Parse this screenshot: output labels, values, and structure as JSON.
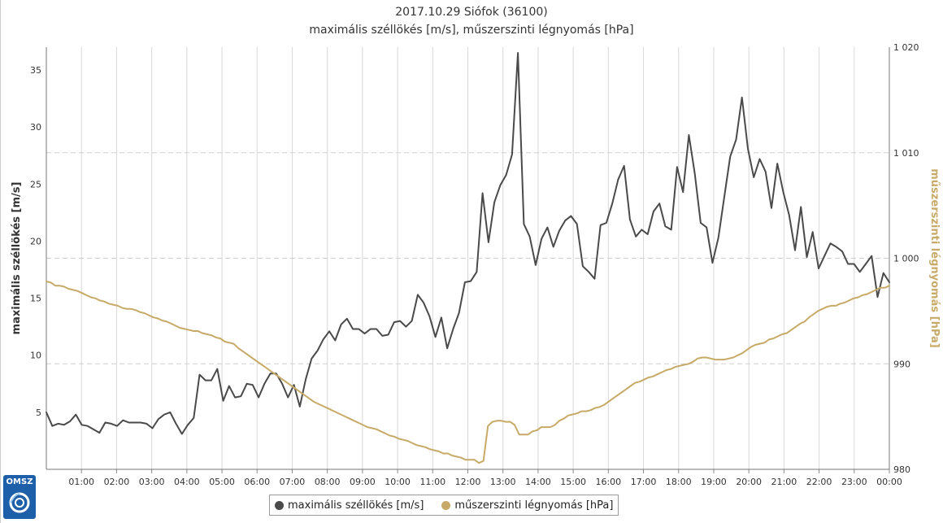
{
  "chart_data": {
    "type": "line",
    "title": "2017.10.29 Siófok (36100)",
    "subtitle": "maximális széllökés [m/s], műszerszinti légnyomás [hPa]",
    "xlabels": [
      "01:00",
      "02:00",
      "03:00",
      "04:00",
      "05:00",
      "06:00",
      "07:00",
      "08:00",
      "09:00",
      "10:00",
      "11:00",
      "12:00",
      "13:00",
      "14:00",
      "15:00",
      "16:00",
      "17:00",
      "18:00",
      "19:00",
      "20:00",
      "21:00",
      "22:00",
      "23:00",
      "00:00"
    ],
    "y_left": {
      "label": "maximális széllökés [m/s]",
      "ticks": [
        "5",
        "10",
        "15",
        "20",
        "25",
        "30",
        "35"
      ],
      "range": [
        0,
        37
      ]
    },
    "y_right": {
      "label": "műszerszinti légnyomás [hPa]",
      "ticks": [
        "980",
        "990",
        "1 000",
        "1 010",
        "1 020"
      ],
      "range": [
        980,
        1020
      ]
    },
    "grid": true,
    "legend_position": "bottom",
    "series": [
      {
        "name": "maximális széllökés [m/s]",
        "axis": "left",
        "color": "#4a4a4a",
        "values": [
          5.0,
          3.8,
          4.0,
          3.9,
          4.2,
          4.8,
          3.9,
          3.8,
          3.5,
          3.2,
          4.1,
          4.0,
          3.8,
          4.3,
          4.1,
          4.1,
          4.1,
          4.0,
          3.6,
          4.4,
          4.8,
          5.0,
          4.0,
          3.1,
          3.9,
          4.5,
          8.3,
          7.8,
          7.8,
          8.8,
          6.0,
          7.3,
          6.3,
          6.4,
          7.5,
          7.4,
          6.3,
          7.5,
          8.4,
          8.4,
          7.5,
          6.3,
          7.4,
          5.5,
          7.9,
          9.7,
          10.4,
          11.4,
          12.1,
          11.3,
          12.7,
          13.2,
          12.3,
          12.3,
          11.9,
          12.3,
          12.3,
          11.7,
          11.8,
          12.9,
          13.0,
          12.5,
          13.0,
          15.3,
          14.6,
          13.4,
          11.6,
          13.3,
          10.6,
          12.3,
          13.7,
          16.4,
          16.5,
          17.3,
          24.2,
          19.9,
          23.4,
          24.9,
          25.8,
          27.6,
          36.5,
          21.5,
          20.4,
          17.9,
          20.2,
          21.2,
          19.5,
          20.9,
          21.8,
          22.2,
          21.5,
          17.8,
          17.3,
          16.7,
          21.4,
          21.6,
          23.3,
          25.4,
          26.6,
          21.9,
          20.4,
          21.0,
          20.6,
          22.6,
          23.3,
          21.3,
          21.0,
          26.5,
          24.3,
          29.3,
          25.9,
          21.6,
          21.2,
          18.1,
          20.3,
          23.9,
          27.4,
          28.9,
          32.6,
          28.1,
          25.6,
          27.2,
          26.1,
          22.9,
          26.8,
          24.3,
          22.3,
          19.2,
          23.0,
          18.6,
          20.8,
          17.6,
          18.7,
          19.8,
          19.5,
          19.1,
          18.0,
          18.0,
          17.3,
          18.0,
          18.7,
          15.1,
          17.2,
          16.4
        ],
        "x_start_hour": 0,
        "x_step_hours": 0.16667
      },
      {
        "name": "műszerszinti légnyomás [hPa]",
        "axis": "right",
        "color": "#c8aa68",
        "values": [
          997.8,
          997.7,
          997.4,
          997.4,
          997.3,
          997.1,
          997.0,
          996.9,
          996.7,
          996.5,
          996.3,
          996.2,
          996.0,
          995.9,
          995.7,
          995.6,
          995.5,
          995.3,
          995.2,
          995.2,
          995.1,
          994.9,
          994.8,
          994.6,
          994.4,
          994.3,
          994.1,
          994.0,
          993.8,
          993.6,
          993.4,
          993.3,
          993.2,
          993.1,
          993.1,
          992.9,
          992.8,
          992.7,
          992.5,
          992.4,
          992.1,
          992.0,
          991.9,
          991.5,
          991.2,
          990.9,
          990.6,
          990.3,
          990.0,
          989.7,
          989.4,
          989.1,
          988.8,
          988.5,
          988.2,
          987.9,
          987.6,
          987.3,
          987.0,
          986.7,
          986.4,
          986.2,
          986.0,
          985.8,
          985.6,
          985.4,
          985.2,
          985.0,
          984.8,
          984.6,
          984.4,
          984.2,
          984.0,
          983.9,
          983.8,
          983.6,
          983.4,
          983.2,
          983.1,
          982.9,
          982.8,
          982.7,
          982.5,
          982.3,
          982.2,
          982.1,
          981.9,
          981.8,
          981.7,
          981.5,
          981.5,
          981.3,
          981.2,
          981.1,
          980.9,
          980.9,
          980.9,
          980.6,
          980.8,
          984.1,
          984.5,
          984.6,
          984.6,
          984.5,
          984.5,
          984.2,
          983.3,
          983.3,
          983.3,
          983.6,
          983.7,
          984.0,
          984.0,
          984.0,
          984.2,
          984.6,
          984.8,
          985.1,
          985.2,
          985.3,
          985.5,
          985.5,
          985.6,
          985.8,
          985.9,
          986.1,
          986.4,
          986.7,
          987.0,
          987.3,
          987.6,
          987.9,
          988.2,
          988.3,
          988.5,
          988.7,
          988.8,
          989.0,
          989.2,
          989.4,
          989.5,
          989.7,
          989.8,
          989.9,
          990.0,
          990.2,
          990.5,
          990.6,
          990.6,
          990.5,
          990.4,
          990.4,
          990.4,
          990.5,
          990.6,
          990.8,
          991.0,
          991.3,
          991.6,
          991.8,
          991.9,
          992.0,
          992.3,
          992.4,
          992.6,
          992.8,
          992.9,
          993.2,
          993.5,
          993.8,
          994.0,
          994.4,
          994.7,
          995.0,
          995.2,
          995.4,
          995.5,
          995.5,
          995.7,
          995.8,
          996.0,
          996.2,
          996.3,
          996.5,
          996.6,
          996.8,
          997.0,
          997.2,
          997.2,
          997.4
        ],
        "x_start_hour": 0,
        "x_step_hours": 0.16667
      }
    ]
  },
  "legend": {
    "items": [
      {
        "label": "maximális széllökés [m/s]",
        "color": "#4a4a4a"
      },
      {
        "label": "műszerszinti légnyomás [hPa]",
        "color": "#c8aa68"
      }
    ]
  },
  "logo": {
    "text": "OMSZ"
  }
}
